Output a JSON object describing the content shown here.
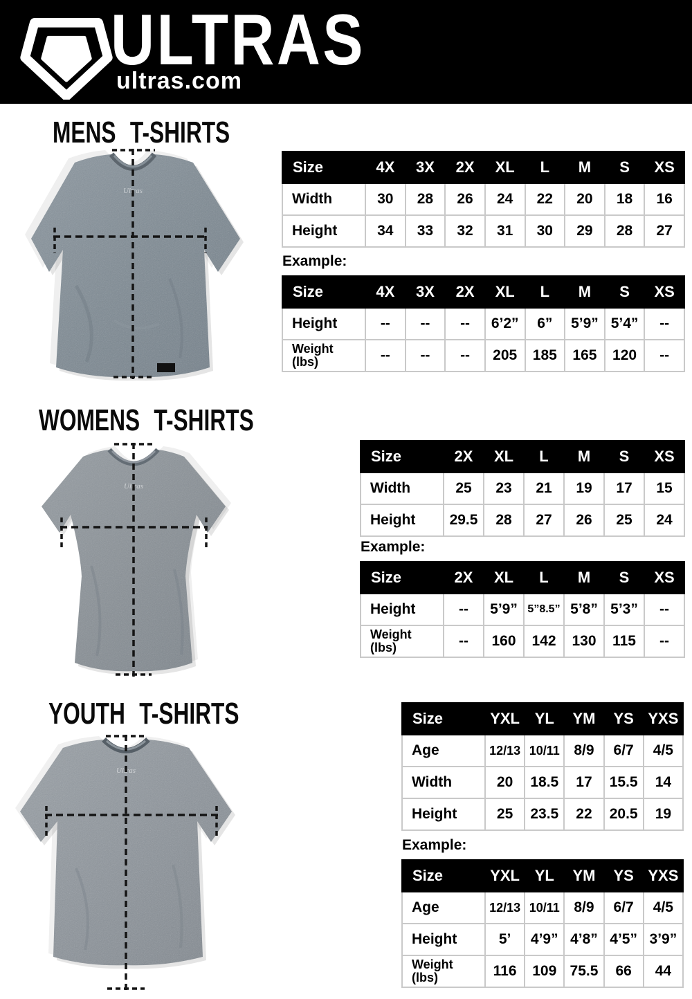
{
  "header": {
    "brand": "ULTRAS",
    "site": "ultras.com",
    "logo_icon": "pentagon-shield-icon"
  },
  "sections": [
    {
      "id": "mens",
      "title": "MENS T-SHIRTS",
      "example_label": "Example:",
      "shirt_image": "mens-grey-tshirt-with-measurement-lines",
      "size_table": {
        "columns": [
          "Size",
          "4X",
          "3X",
          "2X",
          "XL",
          "L",
          "M",
          "S",
          "XS"
        ],
        "rows": [
          {
            "label": "Width",
            "values": [
              "30",
              "28",
              "26",
              "24",
              "22",
              "20",
              "18",
              "16"
            ]
          },
          {
            "label": "Height",
            "values": [
              "34",
              "33",
              "32",
              "31",
              "30",
              "29",
              "28",
              "27"
            ]
          }
        ]
      },
      "example_table": {
        "columns": [
          "Size",
          "4X",
          "3X",
          "2X",
          "XL",
          "L",
          "M",
          "S",
          "XS"
        ],
        "rows": [
          {
            "label": "Height",
            "values": [
              "--",
              "--",
              "--",
              "6’2”",
              "6”",
              "5’9”",
              "5’4”",
              "--"
            ]
          },
          {
            "label": "Weight\n(lbs)",
            "values": [
              "--",
              "--",
              "--",
              "205",
              "185",
              "165",
              "120",
              "--"
            ]
          }
        ]
      }
    },
    {
      "id": "womens",
      "title": "WOMENS T-SHIRTS",
      "example_label": "Example:",
      "shirt_image": "womens-grey-tshirt-with-measurement-lines",
      "size_table": {
        "columns": [
          "Size",
          "2X",
          "XL",
          "L",
          "M",
          "S",
          "XS"
        ],
        "rows": [
          {
            "label": "Width",
            "values": [
              "25",
              "23",
              "21",
              "19",
              "17",
              "15"
            ]
          },
          {
            "label": "Height",
            "values": [
              "29.5",
              "28",
              "27",
              "26",
              "25",
              "24"
            ]
          }
        ]
      },
      "example_table": {
        "columns": [
          "Size",
          "2X",
          "XL",
          "L",
          "M",
          "S",
          "XS"
        ],
        "rows": [
          {
            "label": "Height",
            "values": [
              "--",
              "5’9”",
              "5”8.5”",
              "5’8”",
              "5’3”",
              "--"
            ]
          },
          {
            "label": "Weight\n(lbs)",
            "values": [
              "--",
              "160",
              "142",
              "130",
              "115",
              "--"
            ]
          }
        ]
      }
    },
    {
      "id": "youth",
      "title": "YOUTH T-SHIRTS",
      "example_label": "Example:",
      "shirt_image": "youth-grey-tshirt-with-measurement-lines",
      "size_table": {
        "columns": [
          "Size",
          "YXL",
          "YL",
          "YM",
          "YS",
          "YXS"
        ],
        "rows": [
          {
            "label": "Age",
            "values": [
              "12/13",
              "10/11",
              "8/9",
              "6/7",
              "4/5"
            ]
          },
          {
            "label": "Width",
            "values": [
              "20",
              "18.5",
              "17",
              "15.5",
              "14"
            ]
          },
          {
            "label": "Height",
            "values": [
              "25",
              "23.5",
              "22",
              "20.5",
              "19"
            ]
          }
        ]
      },
      "example_table": {
        "columns": [
          "Size",
          "YXL",
          "YL",
          "YM",
          "YS",
          "YXS"
        ],
        "rows": [
          {
            "label": "Age",
            "values": [
              "12/13",
              "10/11",
              "8/9",
              "6/7",
              "4/5"
            ]
          },
          {
            "label": "Height",
            "values": [
              "5’",
              "4’9”",
              "4’8”",
              "4’5”",
              "3’9”"
            ]
          },
          {
            "label": "Weight\n(lbs)",
            "values": [
              "116",
              "109",
              "75.5",
              "66",
              "44"
            ]
          }
        ]
      }
    }
  ],
  "colors": {
    "header_bg": "#000000",
    "table_header_bg": "#000000",
    "table_border": "#c9c9c9",
    "shirt_grey": "#7e8a93",
    "text": "#000000"
  }
}
